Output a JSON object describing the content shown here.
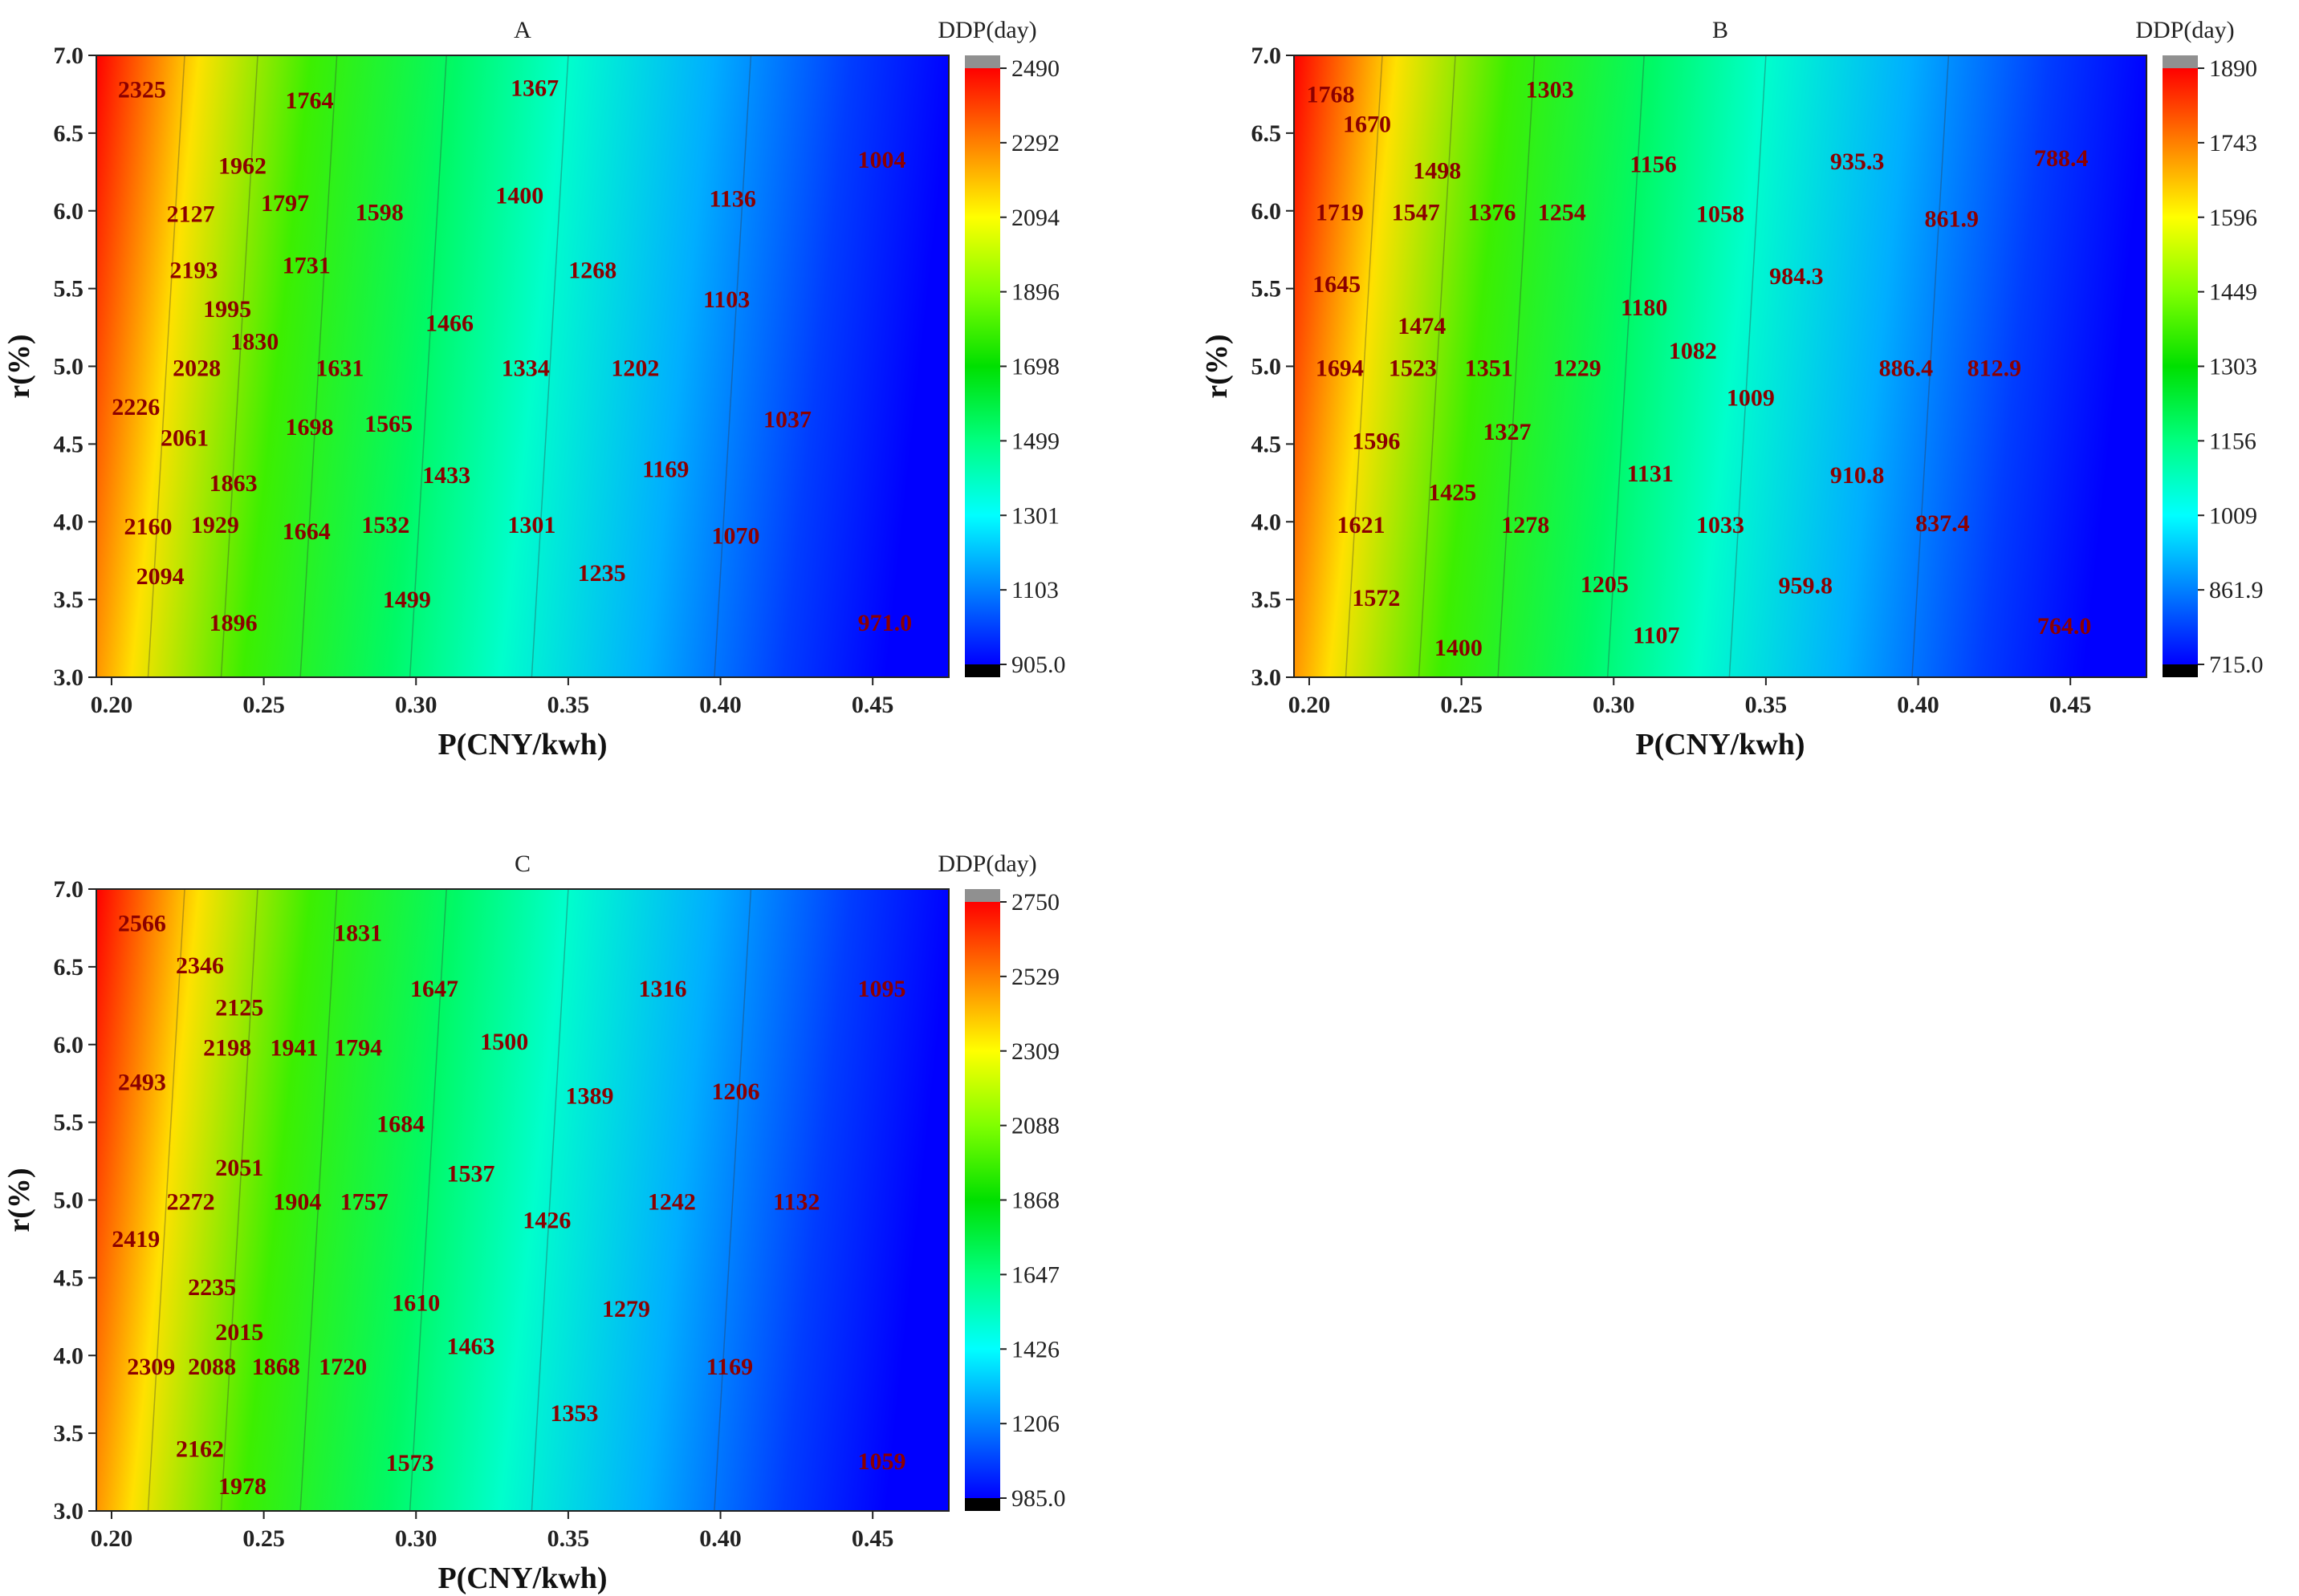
{
  "chart_data": [
    {
      "type": "heatmap",
      "title": "A",
      "xlabel": "P(CNY/kwh)",
      "ylabel": "r(%)",
      "colorbar_title": "DDP(day)",
      "xlim": [
        0.195,
        0.475
      ],
      "ylim": [
        3.0,
        7.0
      ],
      "x_ticks": [
        "0.20",
        "0.25",
        "0.30",
        "0.35",
        "0.40",
        "0.45"
      ],
      "y_ticks": [
        "3.0",
        "3.5",
        "4.0",
        "4.5",
        "5.0",
        "5.5",
        "6.0",
        "6.5",
        "7.0"
      ],
      "colorbar_ticks": [
        "905.0",
        "1103",
        "1301",
        "1499",
        "1698",
        "1896",
        "2094",
        "2292",
        "2490"
      ],
      "value_range": [
        905.0,
        2490
      ],
      "labels": [
        {
          "x": 0.21,
          "y": 6.78,
          "text": "2325"
        },
        {
          "x": 0.265,
          "y": 6.71,
          "text": "1764"
        },
        {
          "x": 0.339,
          "y": 6.79,
          "text": "1367"
        },
        {
          "x": 0.243,
          "y": 6.29,
          "text": "1962"
        },
        {
          "x": 0.453,
          "y": 6.33,
          "text": "1004"
        },
        {
          "x": 0.226,
          "y": 5.98,
          "text": "2127"
        },
        {
          "x": 0.257,
          "y": 6.05,
          "text": "1797"
        },
        {
          "x": 0.288,
          "y": 5.99,
          "text": "1598"
        },
        {
          "x": 0.334,
          "y": 6.1,
          "text": "1400"
        },
        {
          "x": 0.404,
          "y": 6.08,
          "text": "1136"
        },
        {
          "x": 0.227,
          "y": 5.62,
          "text": "2193"
        },
        {
          "x": 0.264,
          "y": 5.65,
          "text": "1731"
        },
        {
          "x": 0.358,
          "y": 5.62,
          "text": "1268"
        },
        {
          "x": 0.238,
          "y": 5.37,
          "text": "1995"
        },
        {
          "x": 0.402,
          "y": 5.43,
          "text": "1103"
        },
        {
          "x": 0.311,
          "y": 5.28,
          "text": "1466"
        },
        {
          "x": 0.247,
          "y": 5.16,
          "text": "1830"
        },
        {
          "x": 0.228,
          "y": 4.99,
          "text": "2028"
        },
        {
          "x": 0.275,
          "y": 4.99,
          "text": "1631"
        },
        {
          "x": 0.336,
          "y": 4.99,
          "text": "1334"
        },
        {
          "x": 0.372,
          "y": 4.99,
          "text": "1202"
        },
        {
          "x": 0.208,
          "y": 4.74,
          "text": "2226"
        },
        {
          "x": 0.224,
          "y": 4.54,
          "text": "2061"
        },
        {
          "x": 0.265,
          "y": 4.61,
          "text": "1698"
        },
        {
          "x": 0.291,
          "y": 4.63,
          "text": "1565"
        },
        {
          "x": 0.422,
          "y": 4.66,
          "text": "1037"
        },
        {
          "x": 0.31,
          "y": 4.3,
          "text": "1433"
        },
        {
          "x": 0.382,
          "y": 4.34,
          "text": "1169"
        },
        {
          "x": 0.24,
          "y": 4.25,
          "text": "1863"
        },
        {
          "x": 0.212,
          "y": 3.97,
          "text": "2160"
        },
        {
          "x": 0.234,
          "y": 3.98,
          "text": "1929"
        },
        {
          "x": 0.264,
          "y": 3.94,
          "text": "1664"
        },
        {
          "x": 0.29,
          "y": 3.98,
          "text": "1532"
        },
        {
          "x": 0.338,
          "y": 3.98,
          "text": "1301"
        },
        {
          "x": 0.405,
          "y": 3.91,
          "text": "1070"
        },
        {
          "x": 0.216,
          "y": 3.65,
          "text": "2094"
        },
        {
          "x": 0.361,
          "y": 3.67,
          "text": "1235"
        },
        {
          "x": 0.297,
          "y": 3.5,
          "text": "1499"
        },
        {
          "x": 0.24,
          "y": 3.35,
          "text": "1896"
        },
        {
          "x": 0.454,
          "y": 3.35,
          "text": "971.0"
        }
      ]
    },
    {
      "type": "heatmap",
      "title": "B",
      "xlabel": "P(CNY/kwh)",
      "ylabel": "r(%)",
      "colorbar_title": "DDP(day)",
      "xlim": [
        0.195,
        0.475
      ],
      "ylim": [
        3.0,
        7.0
      ],
      "x_ticks": [
        "0.20",
        "0.25",
        "0.30",
        "0.35",
        "0.40",
        "0.45"
      ],
      "y_ticks": [
        "3.0",
        "3.5",
        "4.0",
        "4.5",
        "5.0",
        "5.5",
        "6.0",
        "6.5",
        "7.0"
      ],
      "colorbar_ticks": [
        "715.0",
        "861.9",
        "1009",
        "1156",
        "1303",
        "1449",
        "1596",
        "1743",
        "1890"
      ],
      "value_range": [
        715.0,
        1890
      ],
      "labels": [
        {
          "x": 0.207,
          "y": 6.75,
          "text": "1768"
        },
        {
          "x": 0.279,
          "y": 6.78,
          "text": "1303"
        },
        {
          "x": 0.219,
          "y": 6.56,
          "text": "1670"
        },
        {
          "x": 0.242,
          "y": 6.26,
          "text": "1498"
        },
        {
          "x": 0.313,
          "y": 6.3,
          "text": "1156"
        },
        {
          "x": 0.38,
          "y": 6.32,
          "text": "935.3"
        },
        {
          "x": 0.447,
          "y": 6.34,
          "text": "788.4"
        },
        {
          "x": 0.21,
          "y": 5.99,
          "text": "1719"
        },
        {
          "x": 0.235,
          "y": 5.99,
          "text": "1547"
        },
        {
          "x": 0.26,
          "y": 5.99,
          "text": "1376"
        },
        {
          "x": 0.283,
          "y": 5.99,
          "text": "1254"
        },
        {
          "x": 0.335,
          "y": 5.98,
          "text": "1058"
        },
        {
          "x": 0.411,
          "y": 5.95,
          "text": "861.9"
        },
        {
          "x": 0.209,
          "y": 5.53,
          "text": "1645"
        },
        {
          "x": 0.36,
          "y": 5.58,
          "text": "984.3"
        },
        {
          "x": 0.31,
          "y": 5.38,
          "text": "1180"
        },
        {
          "x": 0.237,
          "y": 5.26,
          "text": "1474"
        },
        {
          "x": 0.326,
          "y": 5.1,
          "text": "1082"
        },
        {
          "x": 0.21,
          "y": 4.99,
          "text": "1694"
        },
        {
          "x": 0.234,
          "y": 4.99,
          "text": "1523"
        },
        {
          "x": 0.259,
          "y": 4.99,
          "text": "1351"
        },
        {
          "x": 0.288,
          "y": 4.99,
          "text": "1229"
        },
        {
          "x": 0.396,
          "y": 4.99,
          "text": "886.4"
        },
        {
          "x": 0.425,
          "y": 4.99,
          "text": "812.9"
        },
        {
          "x": 0.345,
          "y": 4.8,
          "text": "1009"
        },
        {
          "x": 0.222,
          "y": 4.52,
          "text": "1596"
        },
        {
          "x": 0.265,
          "y": 4.58,
          "text": "1327"
        },
        {
          "x": 0.312,
          "y": 4.31,
          "text": "1131"
        },
        {
          "x": 0.38,
          "y": 4.3,
          "text": "910.8"
        },
        {
          "x": 0.247,
          "y": 4.19,
          "text": "1425"
        },
        {
          "x": 0.217,
          "y": 3.98,
          "text": "1621"
        },
        {
          "x": 0.271,
          "y": 3.98,
          "text": "1278"
        },
        {
          "x": 0.335,
          "y": 3.98,
          "text": "1033"
        },
        {
          "x": 0.408,
          "y": 3.99,
          "text": "837.4"
        },
        {
          "x": 0.297,
          "y": 3.6,
          "text": "1205"
        },
        {
          "x": 0.363,
          "y": 3.59,
          "text": "959.8"
        },
        {
          "x": 0.222,
          "y": 3.51,
          "text": "1572"
        },
        {
          "x": 0.314,
          "y": 3.27,
          "text": "1107"
        },
        {
          "x": 0.249,
          "y": 3.19,
          "text": "1400"
        },
        {
          "x": 0.448,
          "y": 3.33,
          "text": "764.0"
        }
      ]
    },
    {
      "type": "heatmap",
      "title": "C",
      "xlabel": "P(CNY/kwh)",
      "ylabel": "r(%)",
      "colorbar_title": "DDP(day)",
      "xlim": [
        0.195,
        0.475
      ],
      "ylim": [
        3.0,
        7.0
      ],
      "x_ticks": [
        "0.20",
        "0.25",
        "0.30",
        "0.35",
        "0.40",
        "0.45"
      ],
      "y_ticks": [
        "3.0",
        "3.5",
        "4.0",
        "4.5",
        "5.0",
        "5.5",
        "6.0",
        "6.5",
        "7.0"
      ],
      "colorbar_ticks": [
        "985.0",
        "1206",
        "1426",
        "1647",
        "1868",
        "2088",
        "2309",
        "2529",
        "2750"
      ],
      "value_range": [
        985.0,
        2750
      ],
      "labels": [
        {
          "x": 0.21,
          "y": 6.78,
          "text": "2566"
        },
        {
          "x": 0.281,
          "y": 6.72,
          "text": "1831"
        },
        {
          "x": 0.229,
          "y": 6.51,
          "text": "2346"
        },
        {
          "x": 0.306,
          "y": 6.36,
          "text": "1647"
        },
        {
          "x": 0.381,
          "y": 6.36,
          "text": "1316"
        },
        {
          "x": 0.453,
          "y": 6.36,
          "text": "1095"
        },
        {
          "x": 0.242,
          "y": 6.24,
          "text": "2125"
        },
        {
          "x": 0.238,
          "y": 5.98,
          "text": "2198"
        },
        {
          "x": 0.26,
          "y": 5.98,
          "text": "1941"
        },
        {
          "x": 0.281,
          "y": 5.98,
          "text": "1794"
        },
        {
          "x": 0.329,
          "y": 6.02,
          "text": "1500"
        },
        {
          "x": 0.21,
          "y": 5.76,
          "text": "2493"
        },
        {
          "x": 0.357,
          "y": 5.67,
          "text": "1389"
        },
        {
          "x": 0.405,
          "y": 5.7,
          "text": "1206"
        },
        {
          "x": 0.295,
          "y": 5.49,
          "text": "1684"
        },
        {
          "x": 0.242,
          "y": 5.21,
          "text": "2051"
        },
        {
          "x": 0.318,
          "y": 5.17,
          "text": "1537"
        },
        {
          "x": 0.226,
          "y": 4.99,
          "text": "2272"
        },
        {
          "x": 0.261,
          "y": 4.99,
          "text": "1904"
        },
        {
          "x": 0.283,
          "y": 4.99,
          "text": "1757"
        },
        {
          "x": 0.384,
          "y": 4.99,
          "text": "1242"
        },
        {
          "x": 0.425,
          "y": 4.99,
          "text": "1132"
        },
        {
          "x": 0.343,
          "y": 4.87,
          "text": "1426"
        },
        {
          "x": 0.208,
          "y": 4.75,
          "text": "2419"
        },
        {
          "x": 0.233,
          "y": 4.44,
          "text": "2235"
        },
        {
          "x": 0.3,
          "y": 4.34,
          "text": "1610"
        },
        {
          "x": 0.369,
          "y": 4.3,
          "text": "1279"
        },
        {
          "x": 0.242,
          "y": 4.15,
          "text": "2015"
        },
        {
          "x": 0.318,
          "y": 4.06,
          "text": "1463"
        },
        {
          "x": 0.213,
          "y": 3.93,
          "text": "2309"
        },
        {
          "x": 0.233,
          "y": 3.93,
          "text": "2088"
        },
        {
          "x": 0.254,
          "y": 3.93,
          "text": "1868"
        },
        {
          "x": 0.276,
          "y": 3.93,
          "text": "1720"
        },
        {
          "x": 0.403,
          "y": 3.93,
          "text": "1169"
        },
        {
          "x": 0.352,
          "y": 3.63,
          "text": "1353"
        },
        {
          "x": 0.229,
          "y": 3.4,
          "text": "2162"
        },
        {
          "x": 0.298,
          "y": 3.31,
          "text": "1573"
        },
        {
          "x": 0.453,
          "y": 3.32,
          "text": "1059"
        },
        {
          "x": 0.243,
          "y": 3.16,
          "text": "1978"
        }
      ]
    }
  ],
  "colors": {
    "annotation": "#8b0000",
    "annotation_dark": "#222222",
    "colormap": [
      "#0000ff",
      "#0080ff",
      "#00ffff",
      "#00ff80",
      "#00e000",
      "#80ff00",
      "#ffff00",
      "#ff8000",
      "#ff0000"
    ],
    "over": "#909090",
    "under": "#000000"
  }
}
